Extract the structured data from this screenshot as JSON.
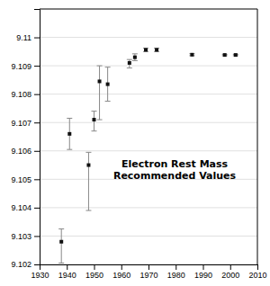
{
  "chart_data": {
    "type": "scatter",
    "title": "Electron Rest Mass\nRecommended Values",
    "x": [
      1938,
      1941,
      1948,
      1950,
      1952,
      1955,
      1963,
      1965,
      1969,
      1973,
      1986,
      1998,
      2002
    ],
    "values": [
      9.1028,
      9.1066,
      9.1055,
      9.1071,
      9.10845,
      9.10835,
      9.1091,
      9.1093,
      9.10956,
      9.10956,
      9.10939,
      9.10938,
      9.10938
    ],
    "yerr_lo": [
      0.00075,
      0.00055,
      0.0016,
      0.0004,
      0.00135,
      0.0006,
      0.00018,
      0.00012,
      6e-05,
      6e-05,
      3.5e-05,
      2.5e-05,
      2.5e-05
    ],
    "yerr_hi": [
      0.00045,
      0.00055,
      0.00045,
      0.0003,
      0.00055,
      0.0006,
      0.00012,
      0.00012,
      6e-05,
      6e-05,
      3.5e-05,
      2.5e-05,
      2.5e-05
    ],
    "color": "#111111",
    "marker": "square",
    "xlim": [
      1930,
      2010
    ],
    "xticks": [
      1930,
      1940,
      1950,
      1960,
      1970,
      1980,
      1990,
      2000,
      2010
    ],
    "ylim": [
      9.102,
      9.111
    ],
    "yticks": [
      9.102,
      9.103,
      9.104,
      9.105,
      9.106,
      9.107,
      9.108,
      9.109,
      9.11
    ],
    "grid": "y"
  }
}
